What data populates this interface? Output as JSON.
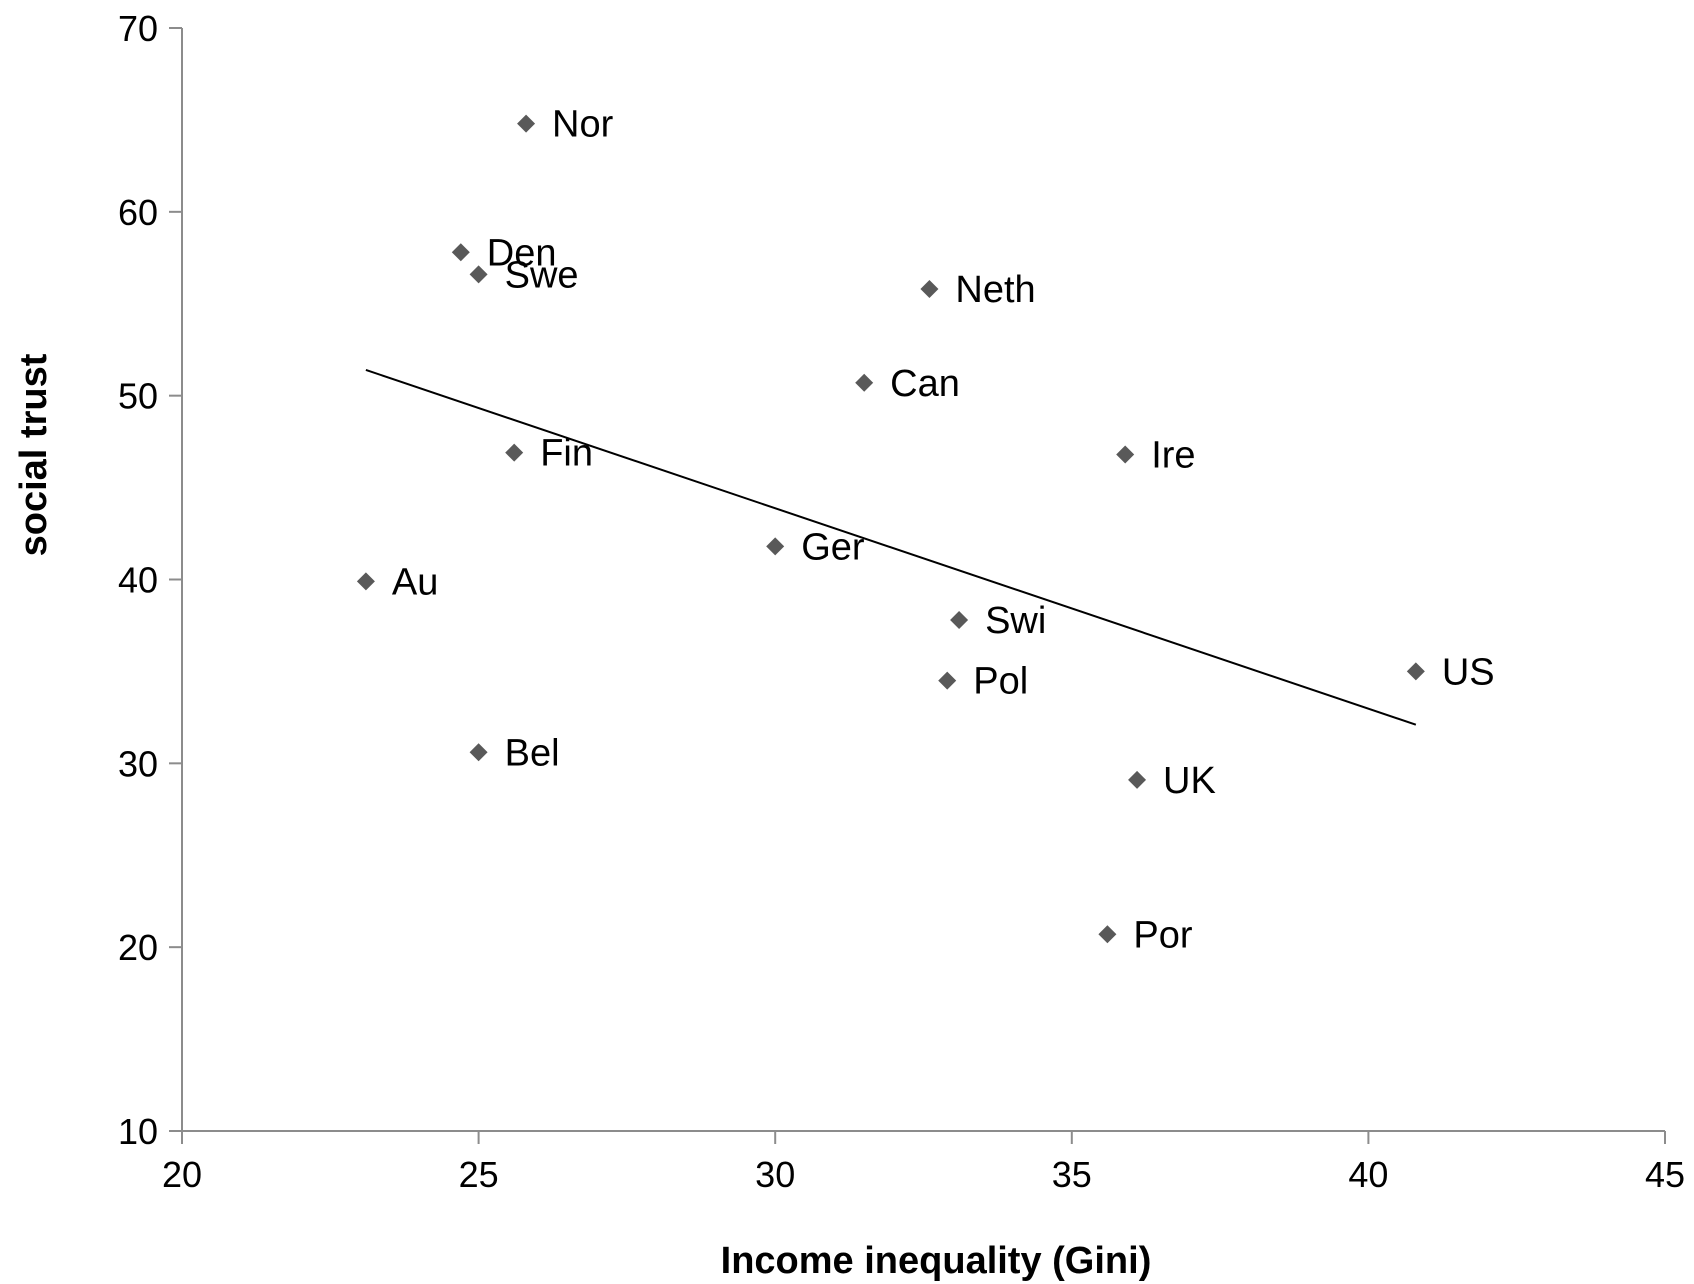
{
  "chart_data": {
    "type": "scatter",
    "title": "",
    "xlabel": "Income inequality (Gini)",
    "ylabel": "social trust",
    "xlim": [
      20,
      45
    ],
    "ylim": [
      10,
      70
    ],
    "x_ticks": [
      20,
      25,
      30,
      35,
      40,
      45
    ],
    "y_ticks": [
      10,
      20,
      30,
      40,
      50,
      60,
      70
    ],
    "grid": false,
    "legend": "none",
    "marker_color": "#595959",
    "trendline": {
      "type": "linear",
      "x": [
        23.1,
        40.8
      ],
      "y": [
        51.4,
        32.1
      ],
      "color": "#000000"
    },
    "points": [
      {
        "label": "Nor",
        "x": 25.8,
        "y": 64.8
      },
      {
        "label": "Den",
        "x": 24.7,
        "y": 57.8
      },
      {
        "label": "Swe",
        "x": 25.0,
        "y": 56.6
      },
      {
        "label": "Neth",
        "x": 32.6,
        "y": 55.8
      },
      {
        "label": "Can",
        "x": 31.5,
        "y": 50.7
      },
      {
        "label": "Fin",
        "x": 25.6,
        "y": 46.9
      },
      {
        "label": "Ire",
        "x": 35.9,
        "y": 46.8
      },
      {
        "label": "Ger",
        "x": 30.0,
        "y": 41.8
      },
      {
        "label": "Au",
        "x": 23.1,
        "y": 39.9
      },
      {
        "label": "Swi",
        "x": 33.1,
        "y": 37.8
      },
      {
        "label": "US",
        "x": 40.8,
        "y": 35.0
      },
      {
        "label": "Pol",
        "x": 32.9,
        "y": 34.5
      },
      {
        "label": "Bel",
        "x": 25.0,
        "y": 30.6
      },
      {
        "label": "UK",
        "x": 36.1,
        "y": 29.1
      },
      {
        "label": "Por",
        "x": 35.6,
        "y": 20.7
      }
    ]
  }
}
